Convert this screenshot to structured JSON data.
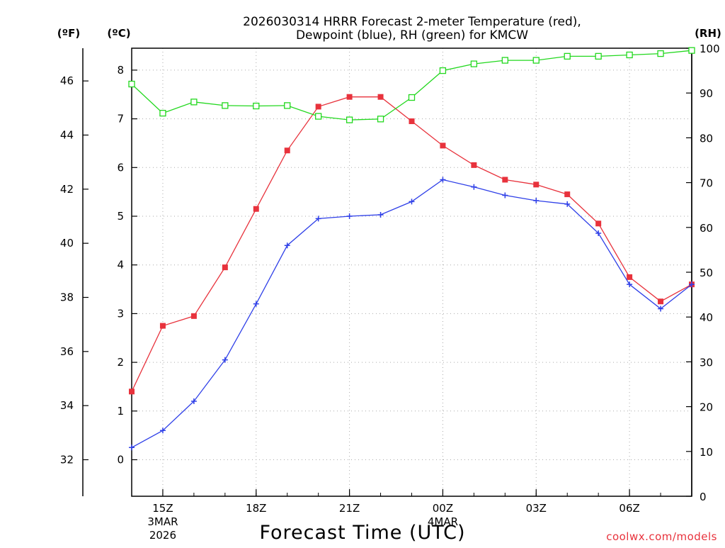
{
  "chart_data": {
    "type": "line",
    "title_line1": "2026030314 HRRR Forecast 2-meter Temperature (red),",
    "title_line2": "Dewpoint (blue), RH (green) for KMCW",
    "xlabel": "Forecast Time (UTC)",
    "credit": "coolwx.com/models",
    "units": {
      "fahrenheit": "(ºF)",
      "celsius": "(ºC)",
      "rh": "(RH)"
    },
    "x_hours_utc": [
      14,
      15,
      16,
      17,
      18,
      19,
      20,
      21,
      22,
      23,
      24,
      25,
      26,
      27,
      28,
      29,
      30,
      31,
      32
    ],
    "xlim": [
      14,
      32
    ],
    "x_ticks": [
      {
        "hour": 15,
        "line1": "15Z",
        "line2": "3MAR",
        "line3": "2026"
      },
      {
        "hour": 18,
        "line1": "18Z",
        "line2": "",
        "line3": ""
      },
      {
        "hour": 21,
        "line1": "21Z",
        "line2": "",
        "line3": ""
      },
      {
        "hour": 24,
        "line1": "00Z",
        "line2": "4MAR",
        "line3": ""
      },
      {
        "hour": 27,
        "line1": "03Z",
        "line2": "",
        "line3": ""
      },
      {
        "hour": 30,
        "line1": "06Z",
        "line2": "",
        "line3": ""
      }
    ],
    "celsius_axis": {
      "ylim": [
        -0.75,
        8.45
      ],
      "ticks": [
        "0",
        "1",
        "2",
        "3",
        "4",
        "5",
        "6",
        "7",
        "8"
      ]
    },
    "fahrenheit_axis": {
      "ylim": [
        30.65,
        47.21
      ],
      "ticks": [
        "32",
        "34",
        "36",
        "38",
        "40",
        "42",
        "44",
        "46"
      ]
    },
    "rh_axis": {
      "ylim": [
        0,
        100
      ],
      "ticks": [
        "0",
        "10",
        "20",
        "30",
        "40",
        "50",
        "60",
        "70",
        "80",
        "90",
        "100"
      ]
    },
    "series": [
      {
        "name": "Temperature",
        "axis": "celsius",
        "color": "#e8323c",
        "marker": "filled-square",
        "values": [
          1.4,
          2.75,
          2.95,
          3.95,
          5.15,
          6.35,
          7.25,
          7.45,
          7.45,
          6.95,
          6.45,
          6.05,
          5.75,
          5.65,
          5.45,
          4.85,
          3.75,
          3.25,
          3.6
        ]
      },
      {
        "name": "Dewpoint",
        "axis": "celsius",
        "color": "#2e3fe8",
        "marker": "plus",
        "values": [
          0.25,
          0.6,
          1.2,
          2.05,
          3.2,
          4.4,
          4.95,
          5.0,
          5.03,
          5.3,
          5.75,
          5.6,
          5.43,
          5.32,
          5.25,
          4.65,
          3.6,
          3.1,
          3.6
        ]
      },
      {
        "name": "RH",
        "axis": "rh",
        "color": "#22d81e",
        "marker": "open-square",
        "values": [
          92,
          85.5,
          88,
          87.2,
          87.1,
          87.2,
          84.8,
          84,
          84.2,
          89,
          95,
          96.5,
          97.3,
          97.3,
          98.2,
          98.2,
          98.5,
          98.8,
          99.5
        ]
      }
    ]
  }
}
